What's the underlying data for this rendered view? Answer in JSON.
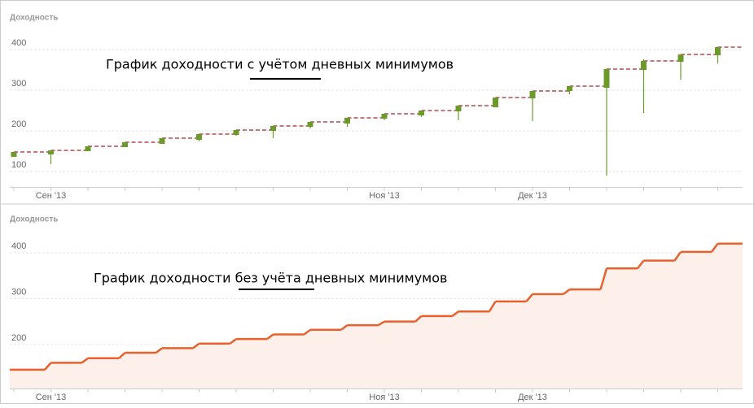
{
  "chart_data": [
    {
      "type": "candlestick",
      "y_title": "Доходность",
      "annotation": "График доходности с учётом дневных минимумов",
      "categories": [
        null,
        "Сен '13",
        null,
        null,
        null,
        null,
        null,
        null,
        null,
        null,
        "Ноя '13",
        null,
        null,
        null,
        "Дек '13",
        null,
        null,
        null,
        null,
        null
      ],
      "open": [
        136,
        142,
        150,
        160,
        168,
        178,
        190,
        200,
        210,
        218,
        230,
        238,
        248,
        258,
        280,
        298,
        306,
        350,
        370,
        386
      ],
      "close": [
        148,
        152,
        162,
        172,
        182,
        192,
        202,
        212,
        222,
        232,
        242,
        250,
        262,
        282,
        298,
        310,
        352,
        372,
        388,
        406
      ],
      "low": [
        136,
        118,
        150,
        160,
        168,
        174,
        188,
        182,
        206,
        210,
        226,
        234,
        226,
        258,
        224,
        290,
        90,
        244,
        326,
        366
      ],
      "high": [
        148,
        152,
        162,
        172,
        182,
        192,
        202,
        212,
        222,
        232,
        242,
        250,
        262,
        282,
        298,
        310,
        352,
        376,
        388,
        406
      ],
      "color": "#6b9a2b",
      "line_color": "#a8262c",
      "ylim": [
        62,
        502
      ],
      "yticks": [
        100,
        200,
        300,
        400
      ],
      "grid": true
    },
    {
      "type": "step-area",
      "y_title": "Доходность",
      "annotation": "График доходности без учёта дневных минимумов",
      "categories": [
        null,
        "Сен '13",
        null,
        null,
        null,
        null,
        null,
        null,
        null,
        null,
        "Ноя '13",
        null,
        null,
        null,
        "Дек '13",
        null,
        null,
        null,
        null,
        null
      ],
      "values": [
        145,
        160,
        170,
        182,
        192,
        202,
        212,
        222,
        232,
        242,
        250,
        262,
        272,
        294,
        310,
        320,
        366,
        383,
        402,
        420
      ],
      "color": "#e8602c",
      "fill": "#fdefea",
      "ylim": [
        104,
        487
      ],
      "yticks": [
        200,
        300,
        400
      ],
      "grid": true
    }
  ]
}
